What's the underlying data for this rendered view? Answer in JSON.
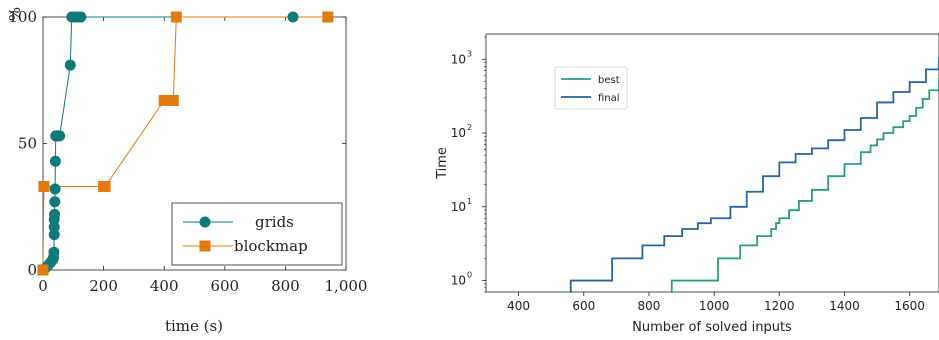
{
  "chart_data": [
    {
      "type": "scatter",
      "xlabel": "time (s)",
      "ylabel": "%",
      "xlim": [
        0,
        1000
      ],
      "ylim": [
        0,
        100
      ],
      "xticks": [
        0,
        200,
        400,
        600,
        800,
        1000
      ],
      "xtick_labels": [
        "0",
        "200",
        "400",
        "600",
        "800",
        "1,000"
      ],
      "yticks": [
        0,
        50,
        100
      ],
      "ytick_labels": [
        "0",
        "50",
        "100"
      ],
      "legend_position": "bottom-right",
      "series": [
        {
          "name": "grids",
          "color": "#0f7b78",
          "marker": "circle",
          "x": [
            2,
            10,
            18,
            25,
            32,
            35,
            36,
            37,
            37,
            37,
            38,
            39,
            40,
            41,
            42,
            45,
            48,
            55,
            90,
            95,
            105,
            115,
            125,
            825
          ],
          "y": [
            0,
            1,
            2,
            3,
            4,
            5,
            7,
            14,
            17,
            20,
            22,
            27,
            32,
            43,
            53,
            53,
            53,
            53,
            81,
            100,
            100,
            100,
            100,
            100
          ]
        },
        {
          "name": "blockmap",
          "color": "#e07b12",
          "marker": "square",
          "x": [
            0,
            3,
            200,
            205,
            400,
            410,
            420,
            430,
            440,
            940
          ],
          "y": [
            0,
            33,
            33,
            33,
            67,
            67,
            67,
            67,
            100,
            100
          ]
        }
      ]
    },
    {
      "type": "line",
      "xlabel": "Number of solved inputs",
      "ylabel": "Time",
      "xlim": [
        300,
        1690
      ],
      "xticks": [
        400,
        600,
        800,
        1000,
        1200,
        1400,
        1600
      ],
      "xtick_labels": [
        "400",
        "600",
        "800",
        "1000",
        "1200",
        "1400",
        "1600"
      ],
      "y_scale": "log",
      "ylim": [
        0.7,
        2200
      ],
      "yticks": [
        1,
        10,
        100,
        1000
      ],
      "ytick_labels": [
        "10",
        "10",
        "10",
        "10"
      ],
      "ytick_exponents": [
        "0",
        "1",
        "2",
        "3"
      ],
      "legend_position": "top-left",
      "series": [
        {
          "name": "best",
          "color": "#2a9c82",
          "x": [
            868,
            870,
            1010,
            1012,
            1078,
            1080,
            1130,
            1132,
            1170,
            1175,
            1190,
            1200,
            1230,
            1260,
            1300,
            1350,
            1400,
            1450,
            1480,
            1500,
            1520,
            1550,
            1580,
            1600,
            1620,
            1640,
            1660,
            1690
          ],
          "y": [
            0.7,
            1,
            1,
            2,
            2,
            3,
            3,
            4,
            4,
            5,
            6,
            7,
            9,
            12,
            17,
            26,
            38,
            55,
            68,
            82,
            100,
            120,
            145,
            170,
            220,
            290,
            380,
            560
          ]
        },
        {
          "name": "final",
          "color": "#2864a0",
          "x": [
            558,
            560,
            685,
            687,
            778,
            780,
            845,
            847,
            900,
            902,
            950,
            990,
            1050,
            1100,
            1150,
            1200,
            1250,
            1300,
            1350,
            1400,
            1450,
            1500,
            1550,
            1600,
            1650,
            1690
          ],
          "y": [
            0.7,
            1,
            1,
            2,
            2,
            3,
            3,
            4,
            4,
            5,
            6,
            7,
            10,
            16,
            26,
            40,
            52,
            62,
            80,
            110,
            160,
            260,
            360,
            490,
            730,
            1050
          ]
        }
      ]
    }
  ]
}
